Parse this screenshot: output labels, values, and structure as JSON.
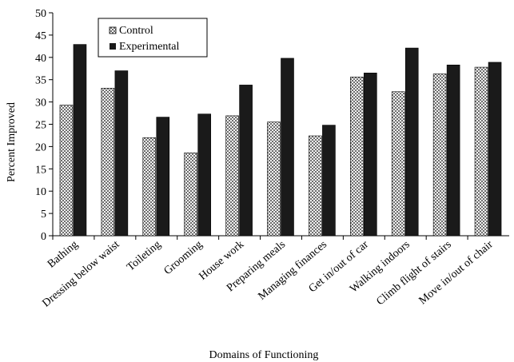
{
  "chart_data": {
    "type": "bar",
    "title": "",
    "xlabel": "Domains of Functioning",
    "ylabel": "Percent Improved",
    "ylim": [
      0,
      50
    ],
    "yticks": [
      0,
      5,
      10,
      15,
      20,
      25,
      30,
      35,
      40,
      45,
      50
    ],
    "grid": false,
    "legend_position": "top-left",
    "categories": [
      "Bathing",
      "Dressing below waist",
      "Toileting",
      "Grooming",
      "House work",
      "Preparing meals",
      "Managing finances",
      "Get in/out of car",
      "Walking indoors",
      "Climb flight of stairs",
      "Move in/out of chair"
    ],
    "series": [
      {
        "name": "Control",
        "pattern": "checkered",
        "color": "#8a8a8a",
        "values": [
          29.3,
          33.1,
          22.0,
          18.6,
          26.9,
          25.5,
          22.4,
          35.6,
          32.3,
          36.3,
          37.8
        ]
      },
      {
        "name": "Experimental",
        "pattern": "solid",
        "color": "#1a1a1a",
        "values": [
          42.9,
          37.0,
          26.6,
          27.3,
          33.8,
          39.8,
          24.8,
          36.5,
          42.1,
          38.3,
          38.9
        ]
      }
    ]
  }
}
